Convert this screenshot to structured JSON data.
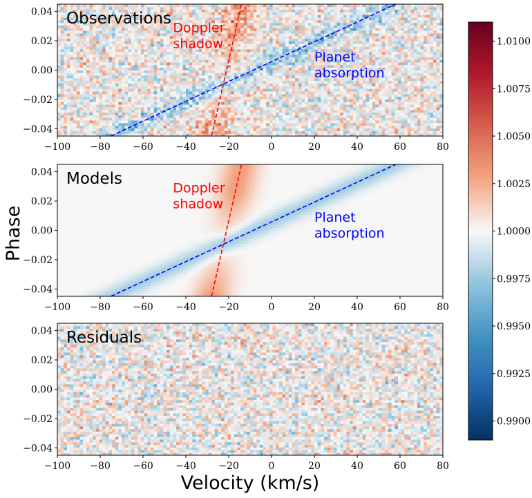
{
  "chart_data": {
    "type": "heatmap",
    "xlabel": "Velocity (km/s)",
    "ylabel": "Phase",
    "xlim": [
      -100,
      80
    ],
    "ylim": [
      -0.045,
      0.045
    ],
    "x_ticks": [
      -100,
      -80,
      -60,
      -40,
      -20,
      0,
      20,
      40,
      60,
      80
    ],
    "y_ticks": [
      -0.04,
      -0.02,
      0.0,
      0.02,
      0.04
    ],
    "y_tick_labels": [
      "−0.04",
      "−0.02",
      "0.00",
      "0.02",
      "0.04"
    ],
    "x_tick_labels": [
      "−100",
      "−80",
      "−60",
      "−40",
      "−20",
      "0",
      "20",
      "40",
      "60",
      "80"
    ],
    "colormap": "RdBu_r",
    "colorbar": {
      "min": 0.989,
      "max": 1.011,
      "ticks": [
        0.99,
        0.9925,
        0.995,
        0.9975,
        1.0,
        1.0025,
        1.005,
        1.0075,
        1.01
      ],
      "tick_labels": [
        "0.9900",
        "0.9925",
        "0.9950",
        "0.9975",
        "1.0000",
        "1.0025",
        "1.0050",
        "1.0075",
        "1.0100"
      ]
    },
    "tracks": {
      "planet": {
        "color": "#0000ff",
        "line": [
          [
            -75,
            -0.045
          ],
          [
            58,
            0.045
          ]
        ]
      },
      "doppler": {
        "color": "#ff0000",
        "line": [
          [
            -28,
            -0.045
          ],
          [
            -14,
            0.045
          ]
        ]
      }
    },
    "panels": [
      {
        "title": "Observations",
        "kind": "observed",
        "annotations": [
          {
            "lines": [
              "Doppler",
              "shadow"
            ],
            "color": "#ff0000",
            "x": -46,
            "y": 0.026
          },
          {
            "lines": [
              "Planet",
              "absorption"
            ],
            "color": "#0000ff",
            "x": 20,
            "y": 0.006
          }
        ]
      },
      {
        "title": "Models",
        "kind": "model",
        "annotations": [
          {
            "lines": [
              "Doppler",
              "shadow"
            ],
            "color": "#ff0000",
            "x": -46,
            "y": 0.026
          },
          {
            "lines": [
              "Planet",
              "absorption"
            ],
            "color": "#0000ff",
            "x": 20,
            "y": 0.006
          }
        ]
      },
      {
        "title": "Residuals",
        "kind": "residual",
        "annotations": []
      }
    ]
  }
}
